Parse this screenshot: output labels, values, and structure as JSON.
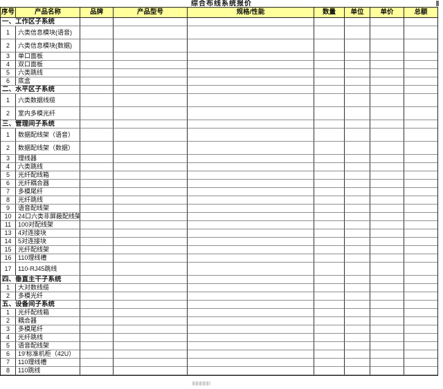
{
  "title": "综合布线系统报价",
  "colors": {
    "header_bg": "#FFFF9C",
    "grid_dark": "#2d2d2d",
    "grid_light": "#8e8e8e",
    "text": "#141414"
  },
  "table": {
    "columns": [
      {
        "key": "no",
        "label": "序号"
      },
      {
        "key": "name",
        "label": "产品名称"
      },
      {
        "key": "brand",
        "label": "品牌"
      },
      {
        "key": "model",
        "label": "产品型号"
      },
      {
        "key": "spec",
        "label": "规格/性能"
      },
      {
        "key": "qty",
        "label": "数量"
      },
      {
        "key": "unit",
        "label": "单位"
      },
      {
        "key": "price",
        "label": "单价"
      },
      {
        "key": "total",
        "label": "总额"
      }
    ],
    "sections": [
      {
        "label": "一、工作区子系统",
        "rows": [
          {
            "no": "1",
            "name": "六类信息模块(语音)",
            "tall": true
          },
          {
            "no": "2",
            "name": "六类信息模块(数据)",
            "tall": true
          },
          {
            "no": "3",
            "name": "单口面板"
          },
          {
            "no": "4",
            "name": "双口面板"
          },
          {
            "no": "5",
            "name": "六类跳线"
          },
          {
            "no": "6",
            "name": "底盒"
          }
        ]
      },
      {
        "label": "二、水平区子系统",
        "rows": [
          {
            "no": "1",
            "name": "六类数据线缆",
            "tall": true
          },
          {
            "no": "2",
            "name": "室内多模光纤",
            "tall": true
          }
        ]
      },
      {
        "label": "三、管理间子系统",
        "rows": [
          {
            "no": "1",
            "name": "数据配线架（语音）",
            "tall": true
          },
          {
            "no": "2",
            "name": "数据配线架（数据）",
            "tall": true
          },
          {
            "no": "3",
            "name": "理线器"
          },
          {
            "no": "4",
            "name": "六类跳线"
          },
          {
            "no": "5",
            "name": "光纤配线箱"
          },
          {
            "no": "6",
            "name": "光纤耦合器"
          },
          {
            "no": "7",
            "name": "多模尾纤"
          },
          {
            "no": "8",
            "name": "光纤跳线"
          },
          {
            "no": "9",
            "name": "语音配线架"
          },
          {
            "no": "10",
            "name": "24口六类非屏蔽配线架"
          },
          {
            "no": "11",
            "name": "100对配线架"
          },
          {
            "no": "13",
            "name": "4对连接块"
          },
          {
            "no": "14",
            "name": "5对连接块"
          },
          {
            "no": "15",
            "name": "光纤配线架"
          },
          {
            "no": "16",
            "name": "110理线槽"
          },
          {
            "no": "17",
            "name": "110-RJ45跳线",
            "tall": true
          }
        ]
      },
      {
        "label": "四、垂直主干子系统",
        "rows": [
          {
            "no": "1",
            "name": "大对数线缆"
          },
          {
            "no": "2",
            "name": "多模光纤"
          }
        ]
      },
      {
        "label": "五、设备间子系统",
        "rows": [
          {
            "no": "1",
            "name": "光纤配线箱"
          },
          {
            "no": "2",
            "name": "耦合器"
          },
          {
            "no": "3",
            "name": "多模尾纤"
          },
          {
            "no": "4",
            "name": "光纤跳线"
          },
          {
            "no": "5",
            "name": "语音配线架"
          },
          {
            "no": "6",
            "name": "19'标准机柜（42U）"
          },
          {
            "no": "7",
            "name": "110理线槽"
          },
          {
            "no": "8",
            "name": "110跳线"
          }
        ]
      }
    ]
  }
}
